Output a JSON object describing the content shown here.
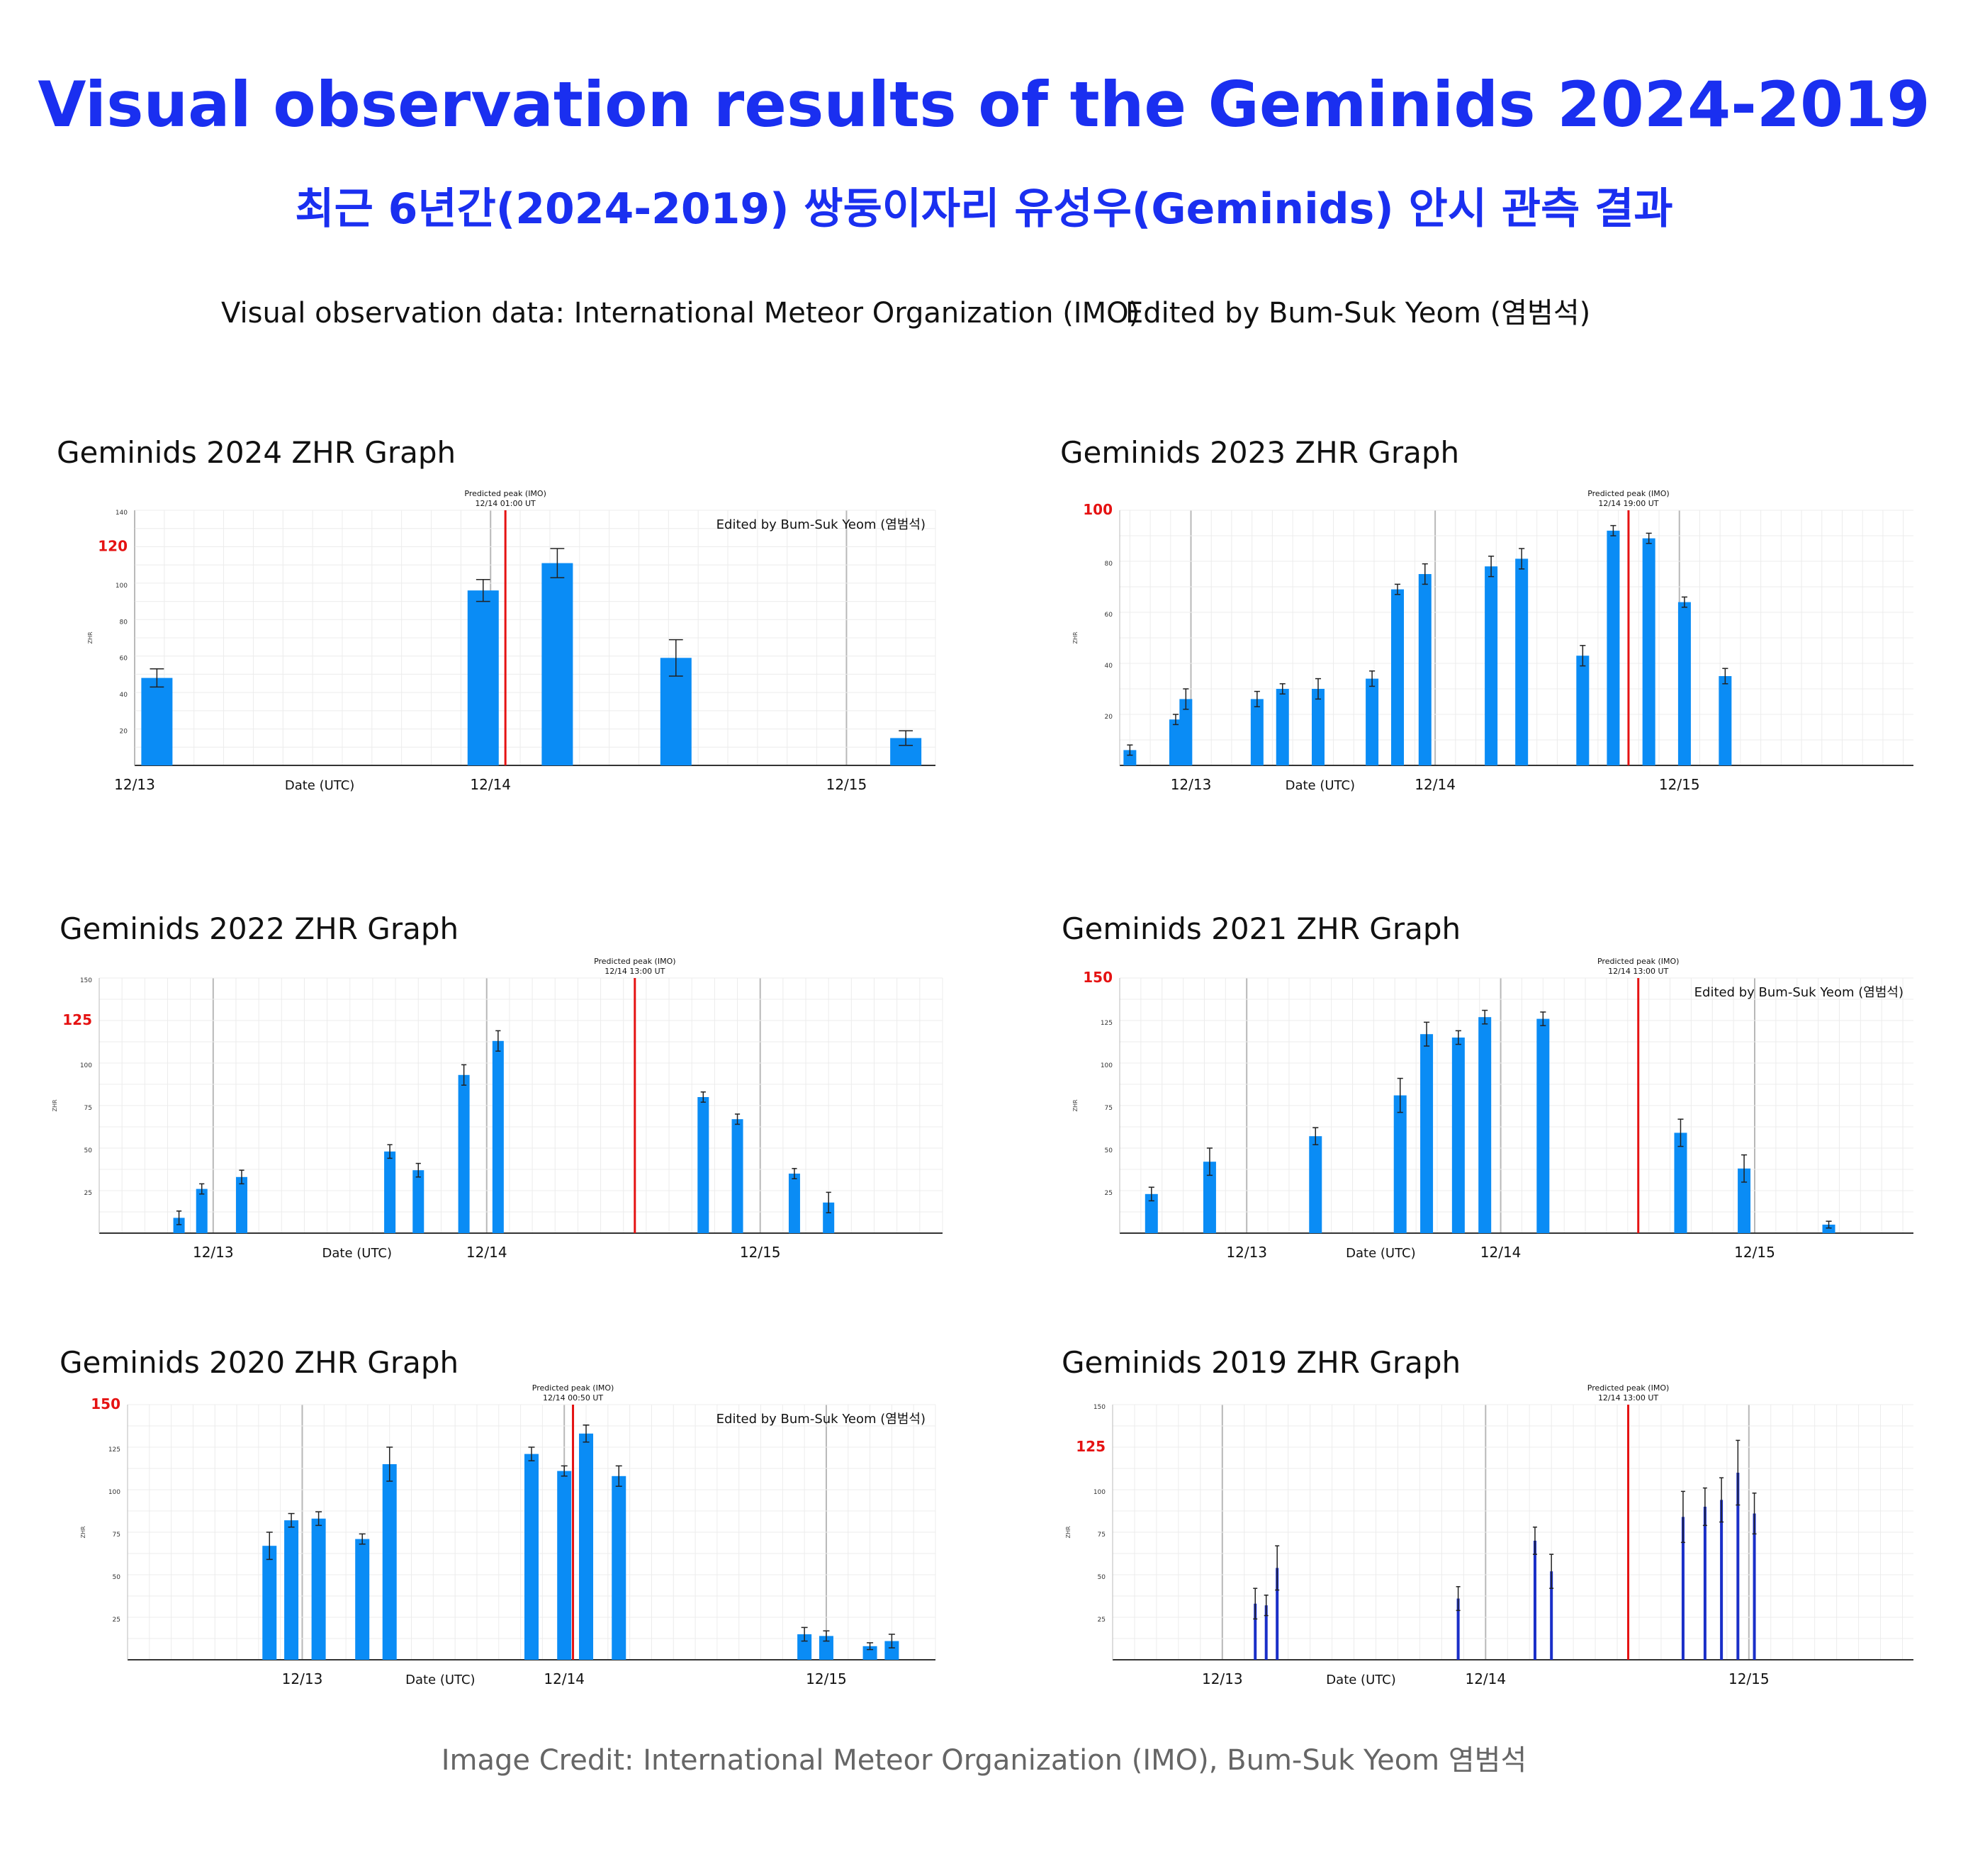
{
  "header": {
    "title": "Visual observation results of the Geminids 2024-2019",
    "subtitle": "최근 6년간(2024-2019) 쌍둥이자리 유성우(Geminids) 안시 관측 결과",
    "data_source": "Visual observation data: International Meteor Organization (IMO)",
    "editor": "Edited by Bum-Suk Yeom (염범석)"
  },
  "footer": {
    "credit": "Image Credit: International Meteor Organization (IMO), Bum-Suk Yeom 염범석"
  },
  "colors": {
    "title": "#1a2ff0",
    "bar": "#0a8cf5",
    "bar_2019": "#1a2fc8",
    "peak_line": "#e51212",
    "highlight_tick": "#e51212"
  },
  "chart_data": [
    {
      "type": "bar",
      "title": "Geminids 2024 ZHR Graph",
      "xlabel": "Date (UTC)",
      "ylabel": "ZHR",
      "x_ticks": [
        "12/13",
        "12/14",
        "12/15"
      ],
      "x_domain": [
        "12/13 00:00",
        "12/15 06:00"
      ],
      "ylim": [
        0,
        140
      ],
      "y_ticks": [
        20,
        40,
        60,
        80,
        100,
        120,
        140
      ],
      "y_highlight": 120,
      "grid": true,
      "peak": {
        "label": "Predicted peak (IMO)",
        "time_label": "12/14 01:00 UT",
        "x_hours": 25
      },
      "editor_note": "Edited by Bum-Suk Yeom (염범석)",
      "points": [
        {
          "x_hours": 1.5,
          "zhr": 48,
          "err": 5
        },
        {
          "x_hours": 23.5,
          "zhr": 96,
          "err": 6
        },
        {
          "x_hours": 28.5,
          "zhr": 111,
          "err": 8
        },
        {
          "x_hours": 36.5,
          "zhr": 59,
          "err": 10
        },
        {
          "x_hours": 52,
          "zhr": 15,
          "err": 4
        }
      ]
    },
    {
      "type": "bar",
      "title": "Geminids 2023 ZHR Graph",
      "xlabel": "Date (UTC)",
      "ylabel": "ZHR",
      "x_ticks": [
        "12/13",
        "12/14",
        "12/15"
      ],
      "x_domain": [
        "12/12 17:00",
        "12/15 23:00"
      ],
      "ylim": [
        0,
        100
      ],
      "y_ticks": [
        20,
        40,
        60,
        80,
        100
      ],
      "y_highlight": 100,
      "grid": true,
      "peak": {
        "label": "Predicted peak (IMO)",
        "time_label": "12/14 19:00 UT",
        "x_hours": 43
      },
      "editor_note": "",
      "points": [
        {
          "x_hours": -6,
          "zhr": 6,
          "err": 2
        },
        {
          "x_hours": -1.5,
          "zhr": 18,
          "err": 2
        },
        {
          "x_hours": -0.5,
          "zhr": 26,
          "err": 4
        },
        {
          "x_hours": 6.5,
          "zhr": 26,
          "err": 3
        },
        {
          "x_hours": 9,
          "zhr": 30,
          "err": 2
        },
        {
          "x_hours": 12.5,
          "zhr": 30,
          "err": 4
        },
        {
          "x_hours": 17.8,
          "zhr": 34,
          "err": 3
        },
        {
          "x_hours": 20.3,
          "zhr": 69,
          "err": 2
        },
        {
          "x_hours": 23,
          "zhr": 75,
          "err": 4
        },
        {
          "x_hours": 29.5,
          "zhr": 78,
          "err": 4
        },
        {
          "x_hours": 32.5,
          "zhr": 81,
          "err": 4
        },
        {
          "x_hours": 38.5,
          "zhr": 43,
          "err": 4
        },
        {
          "x_hours": 41.5,
          "zhr": 92,
          "err": 2
        },
        {
          "x_hours": 45,
          "zhr": 89,
          "err": 2
        },
        {
          "x_hours": 48.5,
          "zhr": 64,
          "err": 2
        },
        {
          "x_hours": 52.5,
          "zhr": 35,
          "err": 3
        }
      ]
    },
    {
      "type": "bar",
      "title": "Geminids 2022 ZHR Graph",
      "xlabel": "Date (UTC)",
      "ylabel": "ZHR",
      "x_ticks": [
        "12/13",
        "12/14",
        "12/15"
      ],
      "x_domain": [
        "12/12 14:00",
        "12/15 16:00"
      ],
      "ylim": [
        0,
        150
      ],
      "y_ticks": [
        25,
        50,
        75,
        100,
        125,
        150
      ],
      "y_highlight": 125,
      "grid": true,
      "peak": {
        "label": "Predicted peak (IMO)",
        "time_label": "12/14 13:00 UT",
        "x_hours": 37
      },
      "editor_note": "",
      "points": [
        {
          "x_hours": -3,
          "zhr": 9,
          "err": 4
        },
        {
          "x_hours": -1,
          "zhr": 26,
          "err": 3
        },
        {
          "x_hours": 2.5,
          "zhr": 33,
          "err": 4
        },
        {
          "x_hours": 15.5,
          "zhr": 48,
          "err": 4
        },
        {
          "x_hours": 18,
          "zhr": 37,
          "err": 4
        },
        {
          "x_hours": 22,
          "zhr": 93,
          "err": 6
        },
        {
          "x_hours": 25,
          "zhr": 113,
          "err": 6
        },
        {
          "x_hours": 43,
          "zhr": 80,
          "err": 3
        },
        {
          "x_hours": 46,
          "zhr": 67,
          "err": 3
        },
        {
          "x_hours": 51,
          "zhr": 35,
          "err": 3
        },
        {
          "x_hours": 54,
          "zhr": 18,
          "err": 6
        }
      ]
    },
    {
      "type": "bar",
      "title": "Geminids 2021 ZHR Graph",
      "xlabel": "Date (UTC)",
      "ylabel": "ZHR",
      "x_ticks": [
        "12/13",
        "12/14",
        "12/15"
      ],
      "x_domain": [
        "12/12 12:00",
        "12/15 15:00"
      ],
      "ylim": [
        0,
        150
      ],
      "y_ticks": [
        25,
        50,
        75,
        100,
        125,
        150
      ],
      "y_highlight": 150,
      "grid": true,
      "peak": {
        "label": "Predicted peak (IMO)",
        "time_label": "12/14 13:00 UT",
        "x_hours": 37
      },
      "editor_note": "Edited by Bum-Suk Yeom (염범석)",
      "points": [
        {
          "x_hours": -9,
          "zhr": 23,
          "err": 4
        },
        {
          "x_hours": -3.5,
          "zhr": 42,
          "err": 8
        },
        {
          "x_hours": 6.5,
          "zhr": 57,
          "err": 5
        },
        {
          "x_hours": 14.5,
          "zhr": 81,
          "err": 10
        },
        {
          "x_hours": 17,
          "zhr": 117,
          "err": 7
        },
        {
          "x_hours": 20,
          "zhr": 115,
          "err": 4
        },
        {
          "x_hours": 22.5,
          "zhr": 127,
          "err": 4
        },
        {
          "x_hours": 28,
          "zhr": 126,
          "err": 4
        },
        {
          "x_hours": 41,
          "zhr": 59,
          "err": 8
        },
        {
          "x_hours": 47,
          "zhr": 38,
          "err": 8
        },
        {
          "x_hours": 55,
          "zhr": 5,
          "err": 2
        }
      ]
    },
    {
      "type": "bar",
      "title": "Geminids 2020 ZHR Graph",
      "xlabel": "Date (UTC)",
      "ylabel": "ZHR",
      "x_ticks": [
        "12/13",
        "12/14",
        "12/15"
      ],
      "x_domain": [
        "12/12 08:00",
        "12/15 10:00"
      ],
      "ylim": [
        0,
        150
      ],
      "y_ticks": [
        25,
        50,
        75,
        100,
        125,
        150
      ],
      "y_highlight": 150,
      "grid": true,
      "peak": {
        "label": "Predicted peak (IMO)",
        "time_label": "12/14 00:50 UT",
        "x_hours": 24.8
      },
      "editor_note": "Edited by Bum-Suk Yeom (염범석)",
      "points": [
        {
          "x_hours": -3,
          "zhr": 67,
          "err": 8
        },
        {
          "x_hours": -1,
          "zhr": 82,
          "err": 4
        },
        {
          "x_hours": 1.5,
          "zhr": 83,
          "err": 4
        },
        {
          "x_hours": 5.5,
          "zhr": 71,
          "err": 3
        },
        {
          "x_hours": 8,
          "zhr": 115,
          "err": 10
        },
        {
          "x_hours": 21,
          "zhr": 121,
          "err": 4
        },
        {
          "x_hours": 24,
          "zhr": 111,
          "err": 3
        },
        {
          "x_hours": 26,
          "zhr": 133,
          "err": 5
        },
        {
          "x_hours": 29,
          "zhr": 108,
          "err": 6
        },
        {
          "x_hours": 46,
          "zhr": 15,
          "err": 4
        },
        {
          "x_hours": 48,
          "zhr": 14,
          "err": 3
        },
        {
          "x_hours": 52,
          "zhr": 8,
          "err": 2
        },
        {
          "x_hours": 54,
          "zhr": 11,
          "err": 4
        }
      ]
    },
    {
      "type": "bar",
      "title": "Geminids 2019 ZHR Graph",
      "xlabel": "Date (UTC)",
      "ylabel": "ZHR",
      "x_ticks": [
        "12/13",
        "12/14",
        "12/15"
      ],
      "x_domain": [
        "12/12 14:00",
        "12/15 15:00"
      ],
      "ylim": [
        0,
        150
      ],
      "y_ticks": [
        25,
        50,
        75,
        100,
        125,
        150
      ],
      "y_highlight": 125,
      "grid": true,
      "peak": {
        "label": "Predicted peak (IMO)",
        "time_label": "12/14 13:00 UT",
        "x_hours": 37
      },
      "editor_note": "",
      "points": [
        {
          "x_hours": 3,
          "zhr": 33,
          "err": 9
        },
        {
          "x_hours": 4,
          "zhr": 32,
          "err": 6
        },
        {
          "x_hours": 5,
          "zhr": 54,
          "err": 13
        },
        {
          "x_hours": 21.5,
          "zhr": 36,
          "err": 7
        },
        {
          "x_hours": 28.5,
          "zhr": 70,
          "err": 8
        },
        {
          "x_hours": 30,
          "zhr": 52,
          "err": 10
        },
        {
          "x_hours": 42,
          "zhr": 84,
          "err": 15
        },
        {
          "x_hours": 44,
          "zhr": 90,
          "err": 11
        },
        {
          "x_hours": 45.5,
          "zhr": 94,
          "err": 13
        },
        {
          "x_hours": 47,
          "zhr": 110,
          "err": 19
        },
        {
          "x_hours": 48.5,
          "zhr": 86,
          "err": 12
        }
      ]
    }
  ]
}
